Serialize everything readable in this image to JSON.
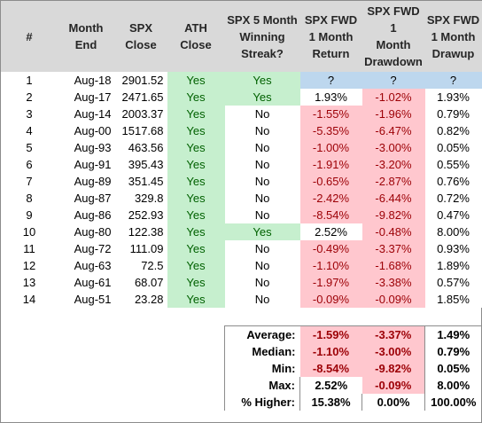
{
  "headers": [
    "#",
    "Month\nEnd",
    "SPX\nClose",
    "ATH\nClose",
    "SPX 5 Month\nWinning\nStreak?",
    "SPX FWD\n1 Month\nReturn",
    "SPX FWD 1\nMonth\nDrawdown",
    "SPX FWD\n1 Month\nDrawup"
  ],
  "rows": [
    {
      "n": "1",
      "month": "Aug-18",
      "close": "2901.52",
      "ath": "Yes",
      "streak": "Yes",
      "ret": "?",
      "dd": "?",
      "du": "?"
    },
    {
      "n": "2",
      "month": "Aug-17",
      "close": "2471.65",
      "ath": "Yes",
      "streak": "Yes",
      "ret": "1.93%",
      "dd": "-1.02%",
      "du": "1.93%"
    },
    {
      "n": "3",
      "month": "Aug-14",
      "close": "2003.37",
      "ath": "Yes",
      "streak": "No",
      "ret": "-1.55%",
      "dd": "-1.96%",
      "du": "0.79%"
    },
    {
      "n": "4",
      "month": "Aug-00",
      "close": "1517.68",
      "ath": "Yes",
      "streak": "No",
      "ret": "-5.35%",
      "dd": "-6.47%",
      "du": "0.82%"
    },
    {
      "n": "5",
      "month": "Aug-93",
      "close": "463.56",
      "ath": "Yes",
      "streak": "No",
      "ret": "-1.00%",
      "dd": "-3.00%",
      "du": "0.05%"
    },
    {
      "n": "6",
      "month": "Aug-91",
      "close": "395.43",
      "ath": "Yes",
      "streak": "No",
      "ret": "-1.91%",
      "dd": "-3.20%",
      "du": "0.55%"
    },
    {
      "n": "7",
      "month": "Aug-89",
      "close": "351.45",
      "ath": "Yes",
      "streak": "No",
      "ret": "-0.65%",
      "dd": "-2.87%",
      "du": "0.76%"
    },
    {
      "n": "8",
      "month": "Aug-87",
      "close": "329.8",
      "ath": "Yes",
      "streak": "No",
      "ret": "-2.42%",
      "dd": "-6.44%",
      "du": "0.72%"
    },
    {
      "n": "9",
      "month": "Aug-86",
      "close": "252.93",
      "ath": "Yes",
      "streak": "No",
      "ret": "-8.54%",
      "dd": "-9.82%",
      "du": "0.47%"
    },
    {
      "n": "10",
      "month": "Aug-80",
      "close": "122.38",
      "ath": "Yes",
      "streak": "Yes",
      "ret": "2.52%",
      "dd": "-0.48%",
      "du": "8.00%"
    },
    {
      "n": "11",
      "month": "Aug-72",
      "close": "111.09",
      "ath": "Yes",
      "streak": "No",
      "ret": "-0.49%",
      "dd": "-3.37%",
      "du": "0.93%"
    },
    {
      "n": "12",
      "month": "Aug-63",
      "close": "72.5",
      "ath": "Yes",
      "streak": "No",
      "ret": "-1.10%",
      "dd": "-1.68%",
      "du": "1.89%"
    },
    {
      "n": "13",
      "month": "Aug-61",
      "close": "68.07",
      "ath": "Yes",
      "streak": "No",
      "ret": "-1.97%",
      "dd": "-3.38%",
      "du": "0.57%"
    },
    {
      "n": "14",
      "month": "Aug-51",
      "close": "23.28",
      "ath": "Yes",
      "streak": "No",
      "ret": "-0.09%",
      "dd": "-0.09%",
      "du": "1.85%"
    }
  ],
  "summary": [
    {
      "label": "Average:",
      "ret": "-1.59%",
      "dd": "-3.37%",
      "du": "1.49%"
    },
    {
      "label": "Median:",
      "ret": "-1.10%",
      "dd": "-3.00%",
      "du": "0.79%"
    },
    {
      "label": "Min:",
      "ret": "-8.54%",
      "dd": "-9.82%",
      "du": "0.05%"
    },
    {
      "label": "Max:",
      "ret": "2.52%",
      "dd": "-0.09%",
      "du": "8.00%"
    },
    {
      "label": "% Higher:",
      "ret": "15.38%",
      "dd": "0.00%",
      "du": "100.00%"
    }
  ],
  "colors": {
    "header_bg": "#d9d9d9",
    "green_fill": "#c6efce",
    "green_text": "#006100",
    "red_fill": "#ffc7ce",
    "red_text": "#9c0006",
    "pending_fill": "#bdd7ee"
  }
}
